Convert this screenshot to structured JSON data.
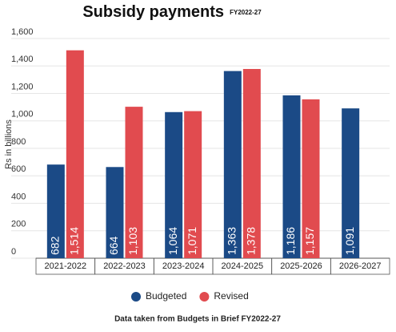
{
  "chart_data": {
    "type": "bar",
    "title": "Subsidy payments",
    "subtitle": "FY2022-27",
    "y_label": "Rs in billions",
    "categories": [
      "2021-2022",
      "2022-2023",
      "2023-2024",
      "2024-2025",
      "2025-2026",
      "2026-2027"
    ],
    "series": [
      {
        "name": "Budgeted",
        "color": "#1b4a86",
        "values": [
          682,
          664,
          1064,
          1363,
          1186,
          1091
        ],
        "value_labels": [
          "682",
          "664",
          "1,064",
          "1,363",
          "1,186",
          "1,091"
        ]
      },
      {
        "name": "Revised",
        "color": "#e14b4f",
        "values": [
          1514,
          1103,
          1071,
          1378,
          1157,
          null
        ],
        "value_labels": [
          "1,514",
          "1,103",
          "1,071",
          "1,378",
          "1,157",
          null
        ]
      }
    ],
    "ylim": [
      0,
      1600
    ],
    "yticks": [
      0,
      200,
      400,
      600,
      800,
      {
        "value": 1000,
        "label": "1,000"
      },
      {
        "value": 1200,
        "label": "1,200"
      },
      {
        "value": 1400,
        "label": "1,400"
      },
      {
        "value": 1600,
        "label": "1,600"
      }
    ],
    "grid": true,
    "legend": "bottom",
    "footnote": "Data taken from Budgets in Brief FY2022-27"
  }
}
